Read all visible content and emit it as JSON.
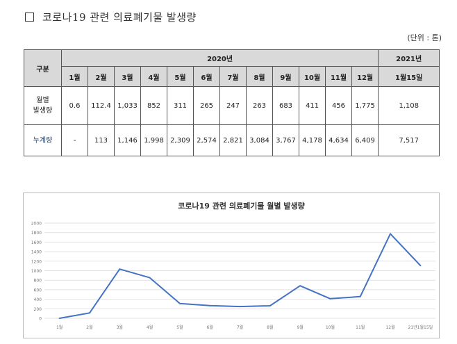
{
  "heading": {
    "text": "코로나19 관련 의료폐기물 발생량",
    "unit": "(단위 : 톤)"
  },
  "table": {
    "col_label": "구분",
    "year_label": "2020년",
    "year2_label": "2021년",
    "months": [
      "1월",
      "2월",
      "3월",
      "4월",
      "5월",
      "6월",
      "7월",
      "8월",
      "9월",
      "10월",
      "11월",
      "12월",
      "1월15일"
    ],
    "rows": [
      {
        "label": "월별\n발생량",
        "values": [
          "0.6",
          "112.4",
          "1,033",
          "852",
          "311",
          "265",
          "247",
          "263",
          "683",
          "411",
          "456",
          "1,775",
          "1,108"
        ]
      },
      {
        "label": "누계량",
        "values": [
          "-",
          "113",
          "1,146",
          "1,998",
          "2,309",
          "2,574",
          "2,821",
          "3,084",
          "3,767",
          "4,178",
          "4,634",
          "6,409",
          "7,517"
        ]
      }
    ]
  },
  "chart_data": {
    "type": "line",
    "title": "코로나19 관련 의료폐기물 월별 발생량",
    "categories": [
      "1월",
      "2월",
      "3월",
      "4월",
      "5월",
      "6월",
      "7월",
      "8월",
      "9월",
      "10월",
      "11월",
      "12월",
      "21년1월15일"
    ],
    "series": [
      {
        "values": [
          0.6,
          112.4,
          1033,
          852,
          311,
          265,
          247,
          263,
          683,
          411,
          456,
          1775,
          1108
        ]
      }
    ],
    "ylim": [
      0,
      2000
    ],
    "yticks": [
      0,
      200,
      400,
      600,
      800,
      1000,
      1200,
      1400,
      1600,
      1800,
      2000
    ],
    "grid": true,
    "line_color": "#4472c4"
  }
}
